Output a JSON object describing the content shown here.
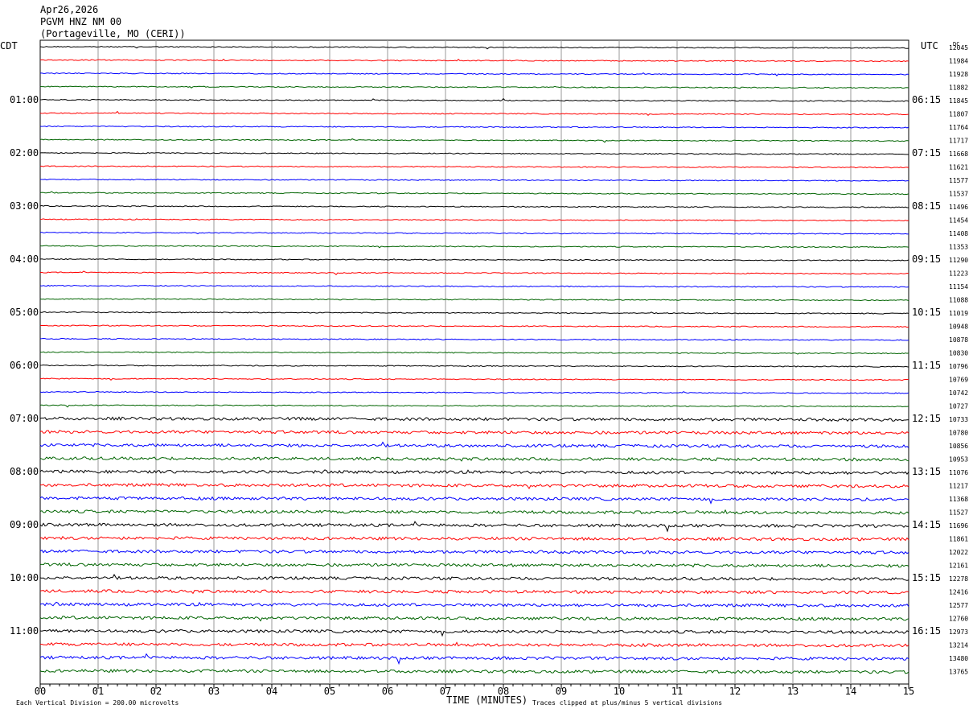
{
  "header": {
    "date": "Apr26,2026",
    "station": "PGVM HNZ NM 00",
    "location": "(Portageville, MO (CERI))"
  },
  "chart_data": {
    "type": "line",
    "title": "",
    "xlabel": "TIME (MINUTES)",
    "left_timezone": "CDT",
    "right_timezone": "UTC",
    "dc_label": "DC",
    "x_ticks": [
      "00",
      "01",
      "02",
      "03",
      "04",
      "05",
      "06",
      "07",
      "08",
      "09",
      "10",
      "11",
      "12",
      "13",
      "14",
      "15"
    ],
    "xlim": [
      0,
      15
    ],
    "left_hour_labels": [
      "01:00",
      "02:00",
      "03:00",
      "04:00",
      "05:00",
      "06:00",
      "07:00",
      "08:00",
      "09:00",
      "10:00",
      "11:00"
    ],
    "right_hour_labels": [
      "06:15",
      "07:15",
      "08:15",
      "09:15",
      "10:15",
      "11:15",
      "12:15",
      "13:15",
      "14:15",
      "15:15",
      "16:15"
    ],
    "trace_colors": [
      "#000000",
      "#ff0000",
      "#0000ff",
      "#006400"
    ],
    "dc_offsets": [
      "12045",
      "11984",
      "11928",
      "11882",
      "11845",
      "11807",
      "11764",
      "11717",
      "11668",
      "11621",
      "11577",
      "11537",
      "11496",
      "11454",
      "11408",
      "11353",
      "11290",
      "11223",
      "11154",
      "11088",
      "11019",
      "10948",
      "10878",
      "10830",
      "10796",
      "10769",
      "10742",
      "10727",
      "10733",
      "10780",
      "10856",
      "10953",
      "11076",
      "11217",
      "11368",
      "11527",
      "11696",
      "11861",
      "12022",
      "12161",
      "12278",
      "12416",
      "12577",
      "12760",
      "12973",
      "13214",
      "13480",
      "13765"
    ],
    "scale_note": "Each Vertical Division =  200.00 microvolts",
    "clip_note": "Traces clipped at plus/minus 5 vertical divisions",
    "grid": true
  }
}
